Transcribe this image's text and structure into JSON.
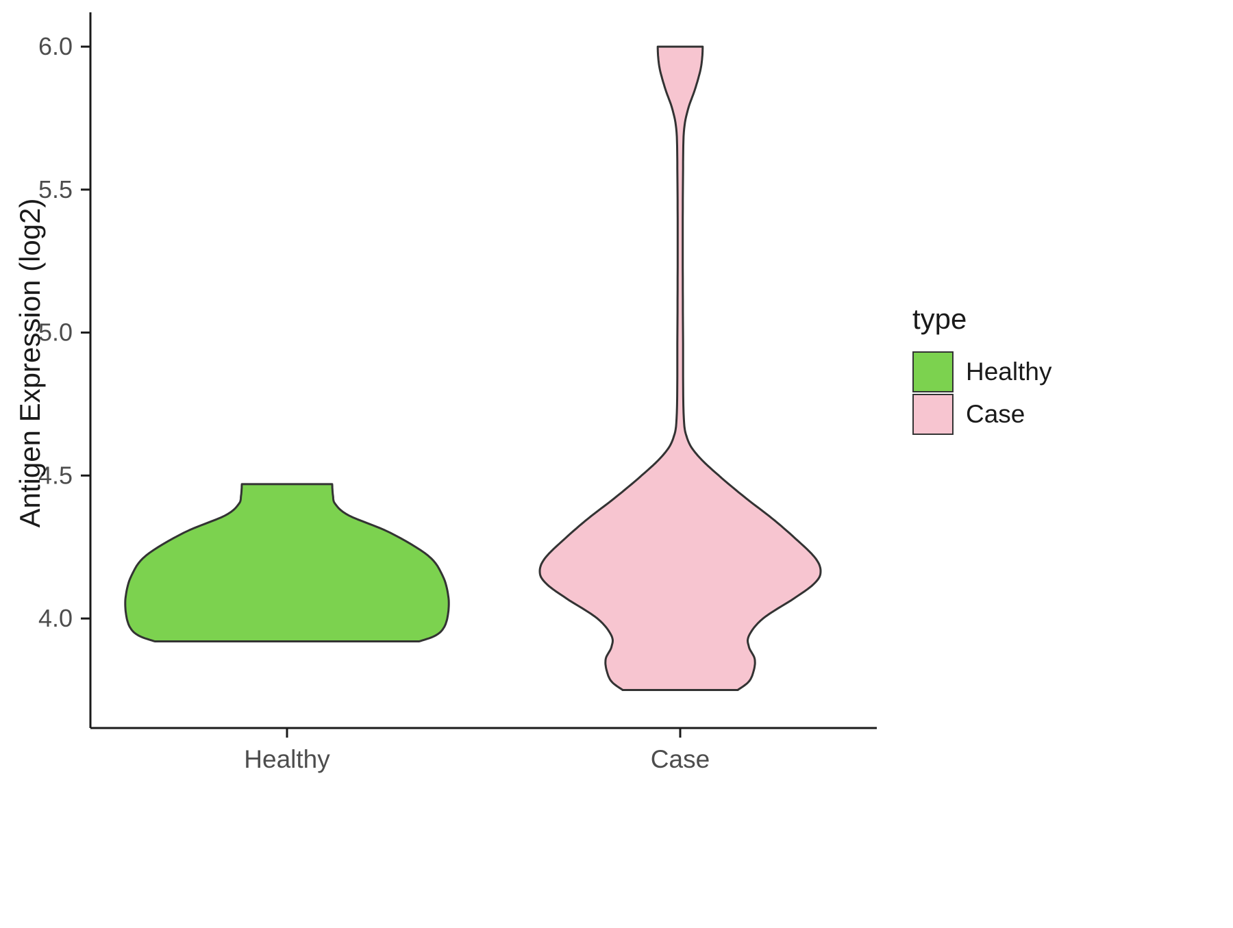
{
  "chart_data": {
    "type": "violin",
    "title": "",
    "xlabel": "",
    "ylabel": "Antigen Expression (log2)",
    "categories": [
      "Healthy",
      "Case"
    ],
    "yticks": [
      4.0,
      4.5,
      5.0,
      5.5,
      6.0
    ],
    "ylim": [
      3.617,
      6.12
    ],
    "grid": false,
    "legend": {
      "title": "type",
      "position": "right",
      "entries": [
        {
          "label": "Healthy",
          "color": "#7CD24F"
        },
        {
          "label": "Case",
          "color": "#F7C5D0"
        }
      ]
    },
    "colors": {
      "outline": "#333333",
      "axis": "#1a1a1a",
      "tick_text": "#4d4d4d",
      "healthy_fill": "#7CD24F",
      "case_fill": "#F7C5D0"
    },
    "series": [
      {
        "name": "Healthy",
        "fill": "#7CD24F",
        "y_min": 3.92,
        "y_max": 4.47,
        "width_frac": 0.82,
        "profile": [
          [
            3.92,
            0.82
          ],
          [
            3.94,
            0.92
          ],
          [
            3.97,
            0.975
          ],
          [
            4.02,
            1.0
          ],
          [
            4.08,
            1.0
          ],
          [
            4.15,
            0.965
          ],
          [
            4.22,
            0.875
          ],
          [
            4.3,
            0.64
          ],
          [
            4.36,
            0.385
          ],
          [
            4.4,
            0.3
          ],
          [
            4.43,
            0.285
          ],
          [
            4.47,
            0.28
          ]
        ]
      },
      {
        "name": "Case",
        "fill": "#F7C5D0",
        "y_min": 3.75,
        "y_max": 6.0,
        "width_frac": 0.714,
        "profile": [
          [
            3.75,
            0.41
          ],
          [
            3.78,
            0.49
          ],
          [
            3.82,
            0.525
          ],
          [
            3.86,
            0.53
          ],
          [
            3.9,
            0.49
          ],
          [
            3.94,
            0.49
          ],
          [
            4.0,
            0.59
          ],
          [
            4.07,
            0.81
          ],
          [
            4.12,
            0.95
          ],
          [
            4.16,
            1.0
          ],
          [
            4.21,
            0.965
          ],
          [
            4.28,
            0.82
          ],
          [
            4.35,
            0.655
          ],
          [
            4.42,
            0.47
          ],
          [
            4.5,
            0.275
          ],
          [
            4.57,
            0.125
          ],
          [
            4.63,
            0.05
          ],
          [
            4.72,
            0.024
          ],
          [
            5.0,
            0.02
          ],
          [
            5.3,
            0.018
          ],
          [
            5.55,
            0.02
          ],
          [
            5.7,
            0.026
          ],
          [
            5.78,
            0.055
          ],
          [
            5.85,
            0.105
          ],
          [
            5.92,
            0.145
          ],
          [
            5.97,
            0.158
          ],
          [
            6.0,
            0.16
          ]
        ]
      }
    ]
  }
}
